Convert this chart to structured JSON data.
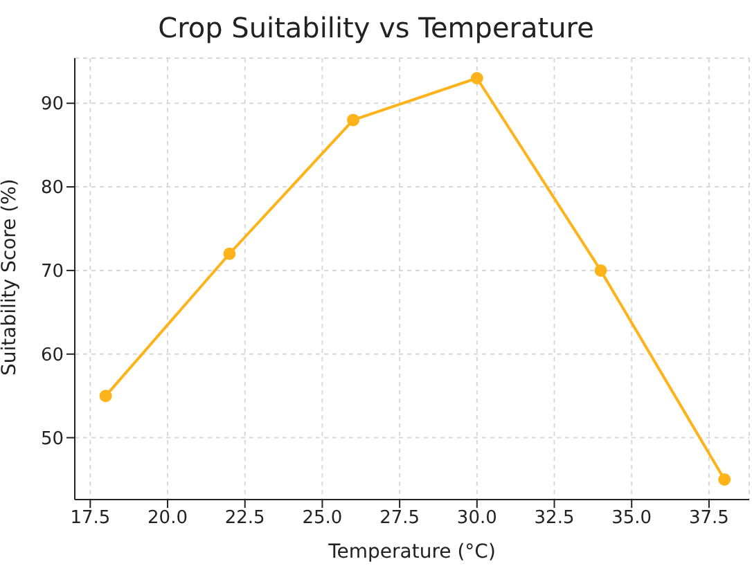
{
  "chart_data": {
    "type": "line",
    "title": "Crop Suitability vs Temperature",
    "xlabel": "Temperature (°C)",
    "ylabel": "Suitability Score (%)",
    "x": [
      18,
      22,
      26,
      30,
      34,
      38
    ],
    "series": [
      {
        "color": "#ffb31a",
        "values": [
          55,
          72,
          88,
          93,
          70,
          45
        ]
      }
    ],
    "xlim": [
      17,
      38.8
    ],
    "xticks": [
      {
        "value": 17.5,
        "label": "17.5"
      },
      {
        "value": 20,
        "label": "20.0"
      },
      {
        "value": 22.5,
        "label": "22.5"
      },
      {
        "value": 25,
        "label": "25.0"
      },
      {
        "value": 27.5,
        "label": "27.5"
      },
      {
        "value": 30,
        "label": "30.0"
      },
      {
        "value": 32.5,
        "label": "32.5"
      },
      {
        "value": 35,
        "label": "35.0"
      },
      {
        "value": 37.5,
        "label": "37.5"
      }
    ],
    "ylim": [
      42.6,
      95.4
    ],
    "yticks": [
      50,
      60,
      70,
      80,
      90
    ],
    "grid": true,
    "marker": "circle",
    "line_style": "solid",
    "legend": false
  }
}
